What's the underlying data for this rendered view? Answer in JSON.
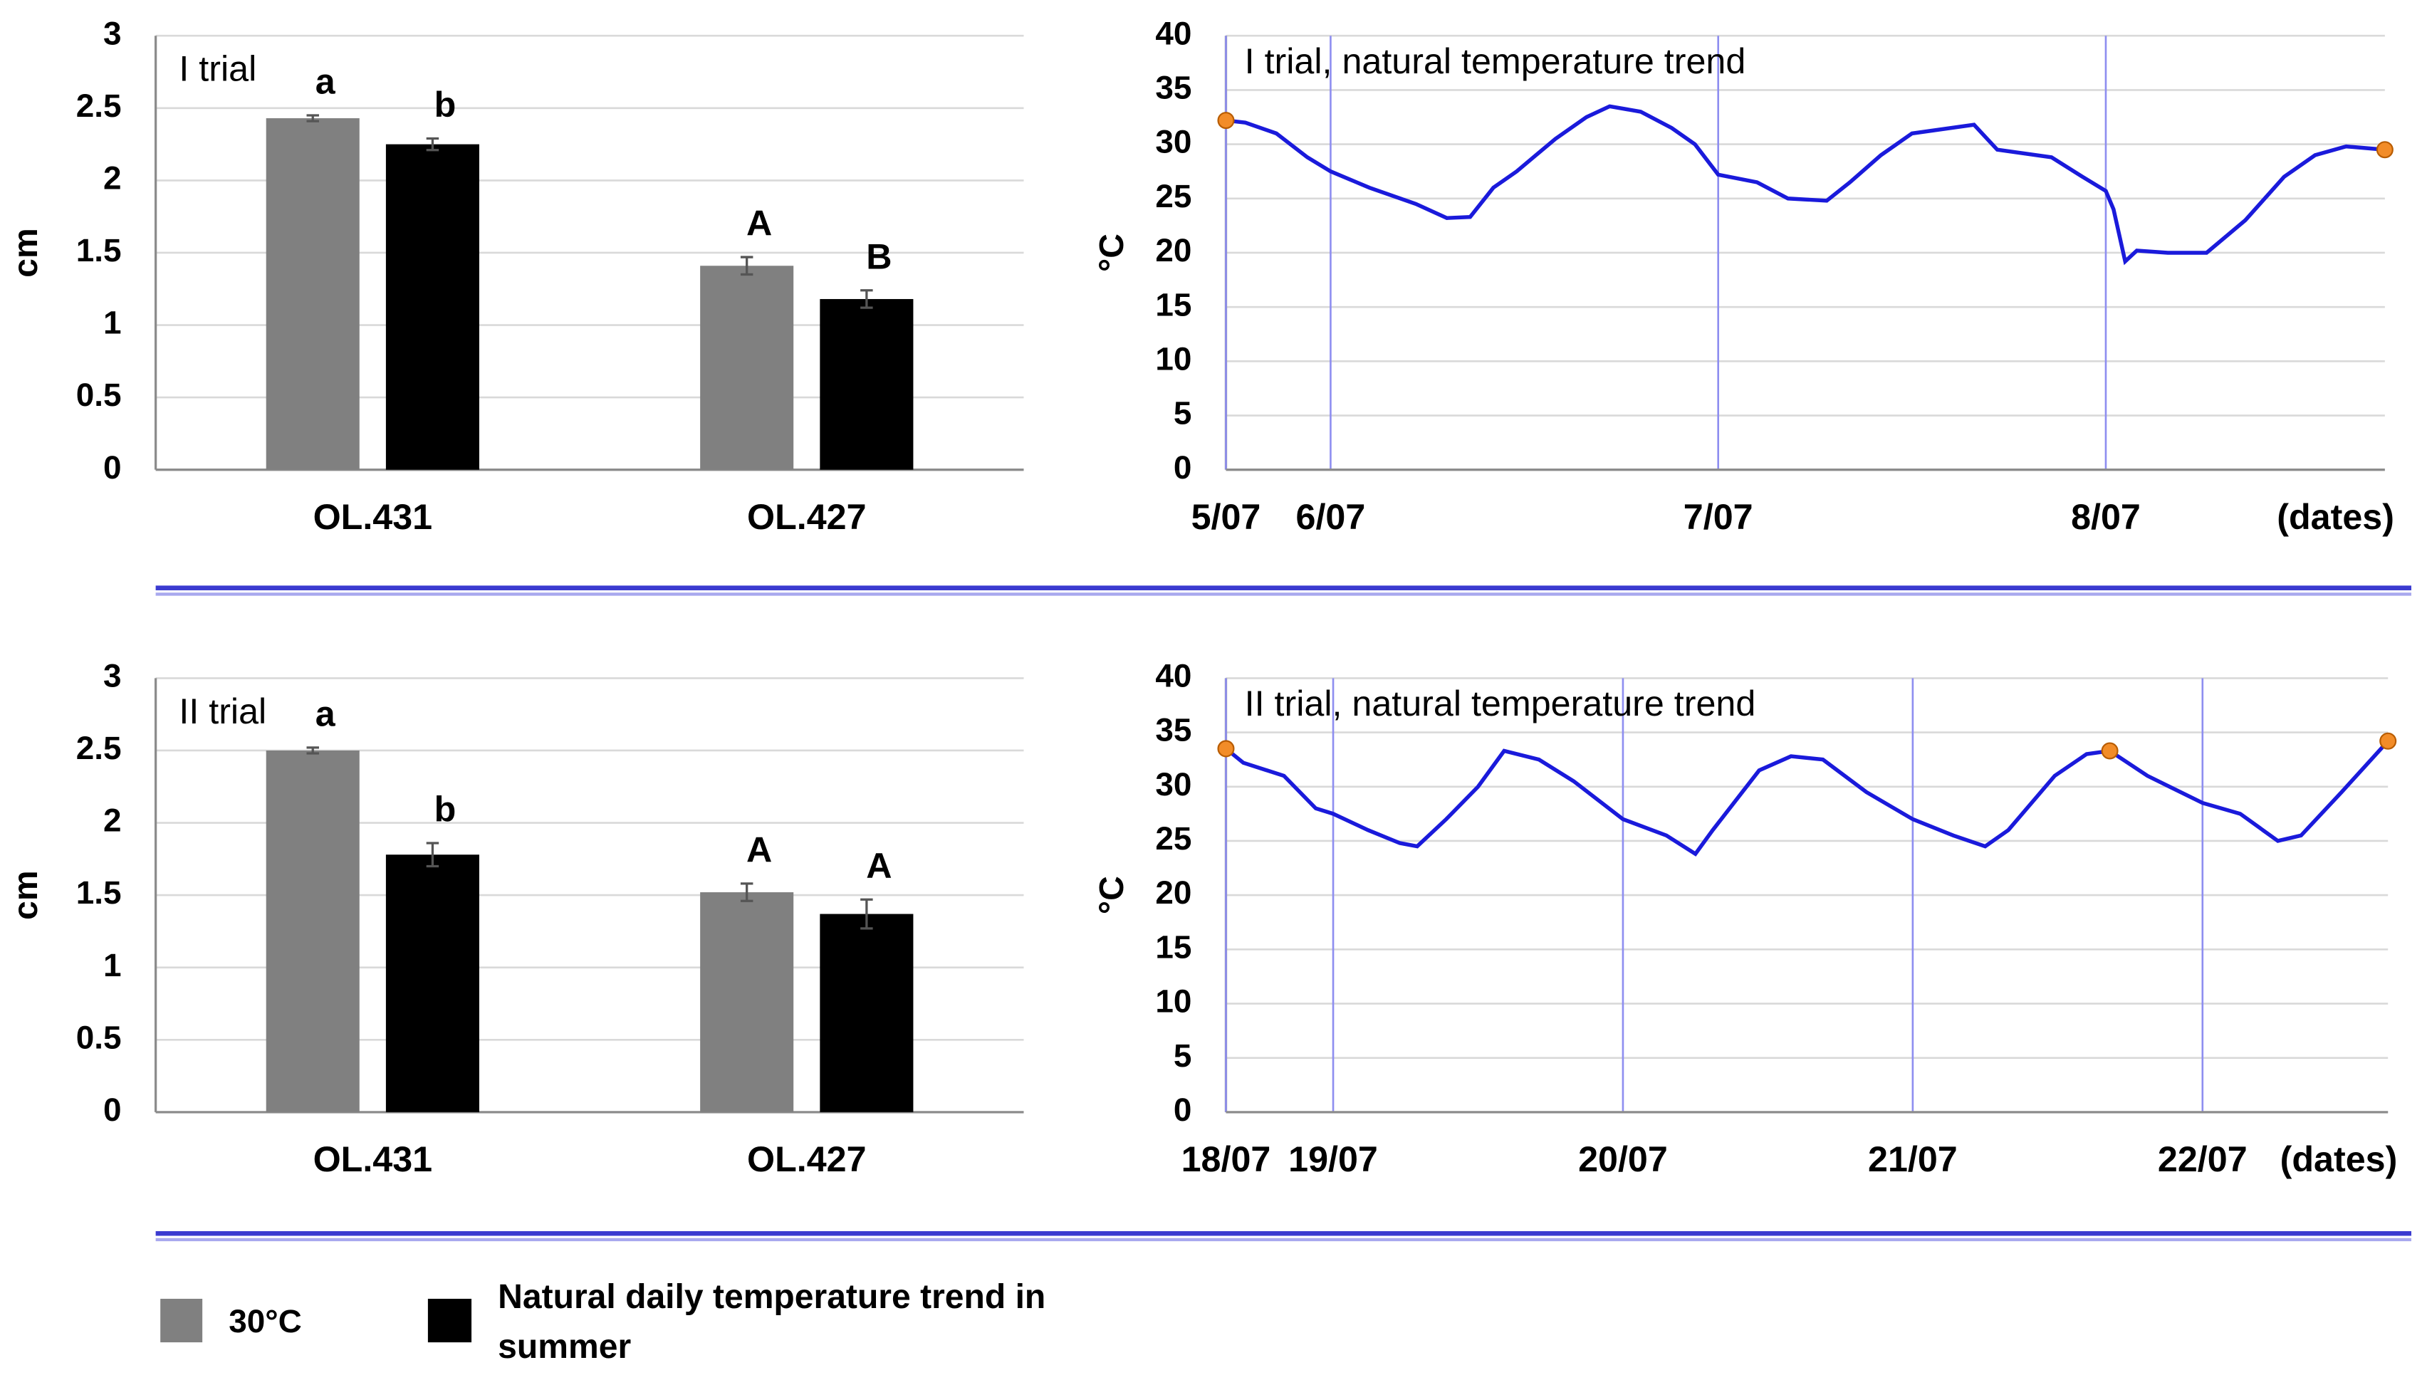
{
  "chart_data": [
    {
      "type": "bar",
      "title": "I trial",
      "y_label": "cm",
      "categories": [
        "OL.431",
        "OL.427"
      ],
      "series": [
        {
          "name": "30°C",
          "color": "#808080",
          "values": [
            2.43,
            1.41
          ],
          "errors": [
            0.02,
            0.06
          ],
          "letters": [
            "a",
            "A"
          ]
        },
        {
          "name": "Natural daily temperature trend in summer",
          "color": "#000000",
          "values": [
            2.25,
            1.18
          ],
          "errors": [
            0.04,
            0.06
          ],
          "letters": [
            "b",
            "B"
          ]
        }
      ],
      "ylim": [
        0,
        3
      ],
      "yticks": [
        0,
        0.5,
        1,
        1.5,
        2,
        2.5,
        3
      ],
      "grid": true
    },
    {
      "type": "line",
      "title": "I trial, natural temperature trend",
      "y_label": "°C",
      "x_label": "(dates)",
      "x": [
        0.73,
        0.78,
        0.86,
        0.94,
        1.0,
        1.1,
        1.22,
        1.3,
        1.36,
        1.42,
        1.48,
        1.58,
        1.66,
        1.72,
        1.8,
        1.88,
        1.94,
        2.0,
        2.1,
        2.18,
        2.28,
        2.34,
        2.42,
        2.5,
        2.66,
        2.72,
        2.86,
        2.94,
        3.0,
        3.02,
        3.05,
        3.08,
        3.16,
        3.26,
        3.36,
        3.46,
        3.54,
        3.62,
        3.72
      ],
      "series": [
        {
          "color": "#1a1adb",
          "values": [
            32.2,
            32.0,
            31.0,
            28.8,
            27.5,
            26,
            24.5,
            23.2,
            23.3,
            26,
            27.5,
            30.5,
            32.5,
            33.5,
            33,
            31.5,
            30,
            27.2,
            26.5,
            25,
            24.8,
            26.5,
            29,
            31,
            31.8,
            29.5,
            28.8,
            27,
            25.7,
            24,
            19.2,
            20.2,
            20,
            20,
            23,
            27,
            29,
            29.8,
            29.5
          ]
        }
      ],
      "highlights": {
        "color": "#f28c28",
        "x": [
          0.73,
          3.72
        ],
        "y": [
          32.2,
          29.5
        ]
      },
      "xlim": [
        0.73,
        3.72
      ],
      "xticks": [
        {
          "value": 0.73,
          "label": "5/07"
        },
        {
          "value": 1,
          "label": "6/07"
        },
        {
          "value": 2,
          "label": "7/07"
        },
        {
          "value": 3,
          "label": "8/07"
        }
      ],
      "ylim": [
        0,
        40
      ],
      "yticks": [
        0,
        5,
        10,
        15,
        20,
        25,
        30,
        35,
        40
      ],
      "grid": true
    },
    {
      "type": "bar",
      "title": "II trial",
      "y_label": "cm",
      "categories": [
        "OL.431",
        "OL.427"
      ],
      "series": [
        {
          "color": "#808080",
          "values": [
            2.5,
            1.52
          ],
          "errors": [
            0.02,
            0.06
          ],
          "letters": [
            "a",
            "A"
          ]
        },
        {
          "color": "#000000",
          "values": [
            1.78,
            1.37
          ],
          "errors": [
            0.08,
            0.1
          ],
          "letters": [
            "b",
            "A"
          ]
        }
      ],
      "ylim": [
        0,
        3
      ],
      "yticks": [
        0,
        0.5,
        1,
        1.5,
        2,
        2.5,
        3
      ],
      "grid": true
    },
    {
      "type": "line",
      "title": "II trial, natural temperature trend",
      "y_label": "°C",
      "x_label": "(dates)",
      "x": [
        0.63,
        0.69,
        0.83,
        0.94,
        1.0,
        1.12,
        1.23,
        1.29,
        1.39,
        1.5,
        1.59,
        1.71,
        1.83,
        2.0,
        2.15,
        2.25,
        2.31,
        2.47,
        2.58,
        2.69,
        2.84,
        3.0,
        3.14,
        3.25,
        3.33,
        3.49,
        3.6,
        3.68,
        3.81,
        4.0,
        4.13,
        4.26,
        4.34,
        4.48,
        4.64
      ],
      "series": [
        {
          "color": "#1a1adb",
          "values": [
            33.5,
            32.2,
            31,
            28,
            27.5,
            26,
            24.8,
            24.5,
            27,
            30,
            33.3,
            32.5,
            30.5,
            27,
            25.5,
            23.8,
            26,
            31.5,
            32.8,
            32.5,
            29.5,
            27,
            25.5,
            24.5,
            26,
            31,
            33,
            33.3,
            31,
            28.5,
            27.5,
            25,
            25.5,
            29.5,
            34.2
          ]
        }
      ],
      "highlights": {
        "color": "#f28c28",
        "x": [
          0.63,
          3.68,
          4.64
        ],
        "y": [
          33.5,
          33.3,
          34.2
        ]
      },
      "xlim": [
        0.63,
        4.64
      ],
      "xticks": [
        {
          "value": 0.63,
          "label": "18/07"
        },
        {
          "value": 1,
          "label": "19/07"
        },
        {
          "value": 2,
          "label": "20/07"
        },
        {
          "value": 3,
          "label": "21/07"
        },
        {
          "value": 4,
          "label": "22/07"
        }
      ],
      "ylim": [
        0,
        40
      ],
      "yticks": [
        0,
        5,
        10,
        15,
        20,
        25,
        30,
        35,
        40
      ],
      "grid": true
    }
  ]
}
